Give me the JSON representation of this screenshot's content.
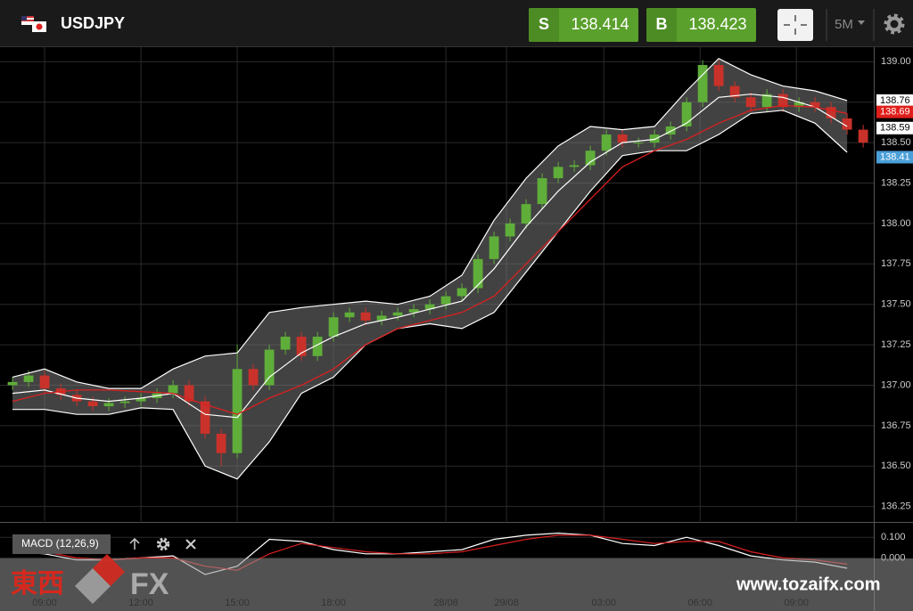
{
  "header": {
    "symbol": "USDJPY",
    "sell": {
      "label": "S",
      "price": "138.414"
    },
    "buy": {
      "label": "B",
      "price": "138.423"
    },
    "timeframe": "5M"
  },
  "chart_data": {
    "type": "candlestick",
    "x": [
      -1,
      -0.5,
      0,
      0.5,
      1,
      1.5,
      2,
      2.5,
      3,
      3.5,
      4,
      4.5,
      5,
      5.5,
      6,
      6.5,
      7,
      7.5,
      8,
      8.5,
      9,
      9.5,
      10,
      10.5,
      11,
      11.5,
      12,
      12.5,
      13,
      13.5,
      14,
      14.5,
      15,
      15.5,
      16,
      16.5,
      17,
      17.5,
      18,
      18.5,
      19,
      19.5,
      20,
      20.5,
      21,
      21.5,
      22,
      22.5,
      23,
      23.5,
      24,
      24.5,
      25,
      25.5
    ],
    "open": [
      137.0,
      137.02,
      137.06,
      136.98,
      136.94,
      136.9,
      136.87,
      136.89,
      136.9,
      136.92,
      136.95,
      137.0,
      136.9,
      136.7,
      136.58,
      137.1,
      137.0,
      137.22,
      137.3,
      137.18,
      137.3,
      137.42,
      137.45,
      137.4,
      137.43,
      137.45,
      137.47,
      137.5,
      137.55,
      137.6,
      137.78,
      137.92,
      138.0,
      138.12,
      138.28,
      138.35,
      138.36,
      138.45,
      138.55,
      138.5,
      138.5,
      138.55,
      138.6,
      138.75,
      138.98,
      138.85,
      138.78,
      138.72,
      138.8,
      138.72,
      138.75,
      138.72,
      138.65,
      138.58
    ],
    "high": [
      137.05,
      137.09,
      137.09,
      137.01,
      136.97,
      136.93,
      136.92,
      136.93,
      136.95,
      136.98,
      137.03,
      137.03,
      136.93,
      136.73,
      137.25,
      137.13,
      137.25,
      137.33,
      137.33,
      137.33,
      137.45,
      137.48,
      137.48,
      137.46,
      137.48,
      137.5,
      137.53,
      137.58,
      137.63,
      137.81,
      137.95,
      138.03,
      138.15,
      138.31,
      138.38,
      138.39,
      138.48,
      138.58,
      138.58,
      138.53,
      138.58,
      138.63,
      138.78,
      139.01,
      139.01,
      138.88,
      138.81,
      138.83,
      138.83,
      138.78,
      138.78,
      138.75,
      138.68,
      138.61
    ],
    "low": [
      136.97,
      136.99,
      136.95,
      136.91,
      136.87,
      136.84,
      136.84,
      136.86,
      136.87,
      136.89,
      136.92,
      136.87,
      136.67,
      136.5,
      136.55,
      136.97,
      136.97,
      137.19,
      137.15,
      137.15,
      137.27,
      137.39,
      137.37,
      137.37,
      137.4,
      137.42,
      137.44,
      137.47,
      137.52,
      137.57,
      137.75,
      137.89,
      137.97,
      138.09,
      138.25,
      138.32,
      138.33,
      138.42,
      138.47,
      138.47,
      138.47,
      138.52,
      138.57,
      138.72,
      138.82,
      138.75,
      138.69,
      138.69,
      138.69,
      138.69,
      138.69,
      138.62,
      138.55,
      138.47
    ],
    "close": [
      137.02,
      137.06,
      136.98,
      136.94,
      136.9,
      136.87,
      136.89,
      136.9,
      136.92,
      136.95,
      137.0,
      136.9,
      136.7,
      136.58,
      137.1,
      137.0,
      137.22,
      137.3,
      137.18,
      137.3,
      137.42,
      137.45,
      137.4,
      137.43,
      137.45,
      137.47,
      137.5,
      137.55,
      137.6,
      137.78,
      137.92,
      138.0,
      138.12,
      138.28,
      138.35,
      138.36,
      138.45,
      138.55,
      138.5,
      138.5,
      138.55,
      138.6,
      138.75,
      138.98,
      138.85,
      138.78,
      138.72,
      138.8,
      138.72,
      138.75,
      138.72,
      138.65,
      138.58,
      138.5
    ],
    "up_color": "#5fae3a",
    "down_color": "#c8322a",
    "bands": {
      "x": [
        -1,
        0,
        1,
        2,
        3,
        4,
        5,
        6,
        7,
        8,
        9,
        10,
        11,
        12,
        13,
        14,
        15,
        16,
        17,
        18,
        19,
        20,
        21,
        22,
        23,
        24,
        25
      ],
      "upper": [
        137.05,
        137.1,
        137.02,
        136.98,
        136.98,
        137.1,
        137.18,
        137.2,
        137.45,
        137.48,
        137.5,
        137.52,
        137.5,
        137.55,
        137.68,
        138.02,
        138.28,
        138.48,
        138.6,
        138.58,
        138.6,
        138.82,
        139.02,
        138.92,
        138.85,
        138.82,
        138.76
      ],
      "middle": [
        136.95,
        136.97,
        136.92,
        136.9,
        136.92,
        136.95,
        136.82,
        136.8,
        137.05,
        137.2,
        137.3,
        137.38,
        137.42,
        137.47,
        137.52,
        137.72,
        137.98,
        138.2,
        138.38,
        138.5,
        138.52,
        138.62,
        138.78,
        138.8,
        138.78,
        138.72,
        138.6
      ],
      "lower": [
        136.85,
        136.85,
        136.82,
        136.82,
        136.86,
        136.85,
        136.5,
        136.42,
        136.65,
        136.95,
        137.05,
        137.25,
        137.35,
        137.38,
        137.35,
        137.45,
        137.7,
        137.95,
        138.2,
        138.42,
        138.45,
        138.45,
        138.55,
        138.68,
        138.7,
        138.62,
        138.44
      ],
      "color": "#ffffff"
    },
    "moving_average": {
      "x": [
        -1,
        0,
        1,
        2,
        3,
        4,
        5,
        6,
        7,
        8,
        9,
        10,
        11,
        12,
        13,
        14,
        15,
        16,
        17,
        18,
        19,
        20,
        21,
        22,
        23,
        24,
        25
      ],
      "values": [
        136.9,
        136.95,
        136.97,
        136.97,
        136.96,
        136.95,
        136.88,
        136.82,
        136.92,
        137.0,
        137.1,
        137.25,
        137.35,
        137.4,
        137.45,
        137.55,
        137.75,
        137.95,
        138.15,
        138.35,
        138.45,
        138.52,
        138.62,
        138.7,
        138.73,
        138.72,
        138.68
      ],
      "color": "#d92020"
    },
    "xlim": [
      -1.39,
      25.83
    ],
    "xticks": [
      {
        "value": 0,
        "label": "09:00"
      },
      {
        "value": 3,
        "label": "12:00"
      },
      {
        "value": 6,
        "label": "15:00"
      },
      {
        "value": 9,
        "label": "18:00"
      },
      {
        "value": 12.5,
        "label": "28/08"
      },
      {
        "value": 14.39,
        "label": "29/08"
      },
      {
        "value": 17.42,
        "label": "03:00"
      },
      {
        "value": 20.42,
        "label": "06:00"
      },
      {
        "value": 23.42,
        "label": "09:00"
      }
    ],
    "ylim": [
      136.16,
      139.09
    ],
    "yticks": [
      136.25,
      {
        "value": 136.5,
        "label": "136.50"
      },
      136.75,
      {
        "value": 137,
        "label": "137.00"
      },
      137.25,
      {
        "value": 137.5,
        "label": "137.50"
      },
      137.75,
      {
        "value": 138,
        "label": "138.00"
      },
      138.25,
      {
        "value": 138.5,
        "label": "138.50"
      },
      138.75,
      {
        "value": 139,
        "label": "139.00"
      }
    ],
    "grid": true,
    "price_tags": [
      {
        "value": 138.76,
        "color": "#ffffff",
        "text_color": "#000000"
      },
      {
        "value": 138.69,
        "color": "#e01e1a",
        "text_color": "#ffffff"
      },
      {
        "value": 138.59,
        "color": "#ffffff",
        "text_color": "#000000"
      },
      {
        "value": 138.41,
        "color": "#4a9fd8",
        "text_color": "#ffffff"
      }
    ],
    "macd": {
      "label": "MACD (12,26,9)",
      "x": [
        -1,
        0,
        1,
        2,
        3,
        4,
        5,
        6,
        7,
        8,
        9,
        10,
        11,
        12,
        13,
        14,
        15,
        16,
        17,
        18,
        19,
        20,
        21,
        22,
        23,
        24,
        25
      ],
      "macd": [
        0.03,
        0.02,
        -0.01,
        -0.01,
        0.0,
        0.01,
        -0.08,
        -0.04,
        0.09,
        0.08,
        0.04,
        0.02,
        0.02,
        0.03,
        0.04,
        0.09,
        0.11,
        0.12,
        0.11,
        0.07,
        0.06,
        0.1,
        0.06,
        0.01,
        -0.01,
        -0.02,
        -0.05
      ],
      "signal": [
        0.03,
        0.03,
        0.0,
        -0.01,
        0.0,
        0.0,
        -0.04,
        -0.06,
        0.02,
        0.07,
        0.05,
        0.03,
        0.02,
        0.02,
        0.03,
        0.06,
        0.09,
        0.11,
        0.11,
        0.09,
        0.07,
        0.08,
        0.08,
        0.03,
        0.0,
        -0.01,
        -0.03
      ],
      "macd_color": "#ffffff",
      "signal_color": "#d92020",
      "ylim": [
        -0.257,
        0.17
      ],
      "yticks": [
        {
          "value": 0.1,
          "label": "0.100"
        },
        {
          "value": 0,
          "label": "0.000"
        }
      ]
    }
  },
  "watermark": {
    "brand": "東西",
    "logo": "FX",
    "url": "www.tozaifx.com"
  }
}
